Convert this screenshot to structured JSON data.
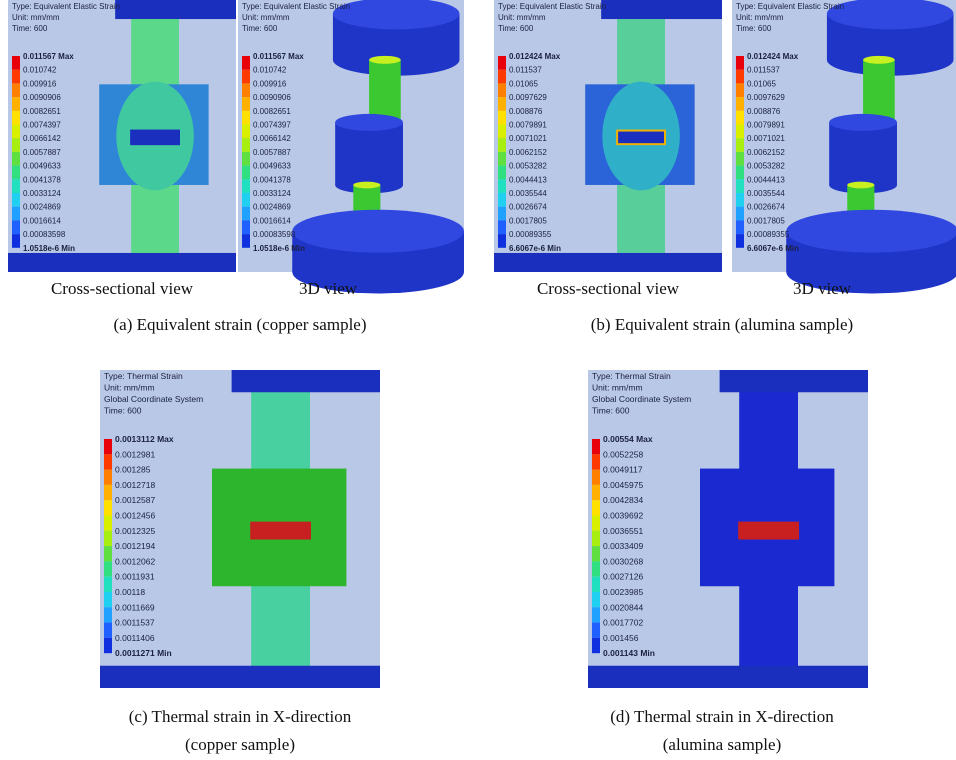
{
  "panels": [
    {
      "view_captions": [
        "Cross-sectional view",
        "3D view"
      ],
      "caption_lines": [
        "(a) Equivalent strain (copper sample)"
      ],
      "legend": {
        "type": "Type: Equivalent Elastic Strain",
        "unit": "Unit: mm/mm",
        "time": "Time: 600",
        "levels": [
          "0.011567 Max",
          "0.010742",
          "0.009916",
          "0.0090906",
          "0.0082651",
          "0.0074397",
          "0.0066142",
          "0.0057887",
          "0.0049633",
          "0.0041378",
          "0.0033124",
          "0.0024869",
          "0.0016614",
          "0.00083598",
          "1.0518e-6 Min"
        ]
      }
    },
    {
      "view_captions": [
        "Cross-sectional view",
        "3D view"
      ],
      "caption_lines": [
        "(b) Equivalent strain (alumina sample)"
      ],
      "legend": {
        "type": "Type: Equivalent Elastic Strain",
        "unit": "Unit: mm/mm",
        "time": "Time: 600",
        "levels": [
          "0.012424 Max",
          "0.011537",
          "0.01065",
          "0.0097629",
          "0.008876",
          "0.0079891",
          "0.0071021",
          "0.0062152",
          "0.0053282",
          "0.0044413",
          "0.0035544",
          "0.0026674",
          "0.0017805",
          "0.00089355",
          "6.6067e-6 Min"
        ]
      }
    },
    {
      "caption_lines": [
        "(c) Thermal strain in X-direction",
        "(copper sample)"
      ],
      "legend": {
        "type": "Type: Thermal Strain",
        "unit": "Unit: mm/mm",
        "coordinate_system": "Global Coordinate System",
        "time": "Time: 600",
        "levels": [
          "0.0013112 Max",
          "0.0012981",
          "0.001285",
          "0.0012718",
          "0.0012587",
          "0.0012456",
          "0.0012325",
          "0.0012194",
          "0.0012062",
          "0.0011931",
          "0.00118",
          "0.0011669",
          "0.0011537",
          "0.0011406",
          "0.0011271 Min"
        ]
      }
    },
    {
      "caption_lines": [
        "(d) Thermal strain in X-direction",
        "(alumina sample)"
      ],
      "legend": {
        "type": "Type: Thermal Strain",
        "unit": "Unit: mm/mm",
        "coordinate_system": "Global Coordinate System",
        "time": "Time: 600",
        "levels": [
          "0.00554 Max",
          "0.0052258",
          "0.0049117",
          "0.0045975",
          "0.0042834",
          "0.0039692",
          "0.0036551",
          "0.0033409",
          "0.0030268",
          "0.0027126",
          "0.0023985",
          "0.0020844",
          "0.0017702",
          "0.001456",
          "0.001143 Min"
        ]
      }
    }
  ]
}
